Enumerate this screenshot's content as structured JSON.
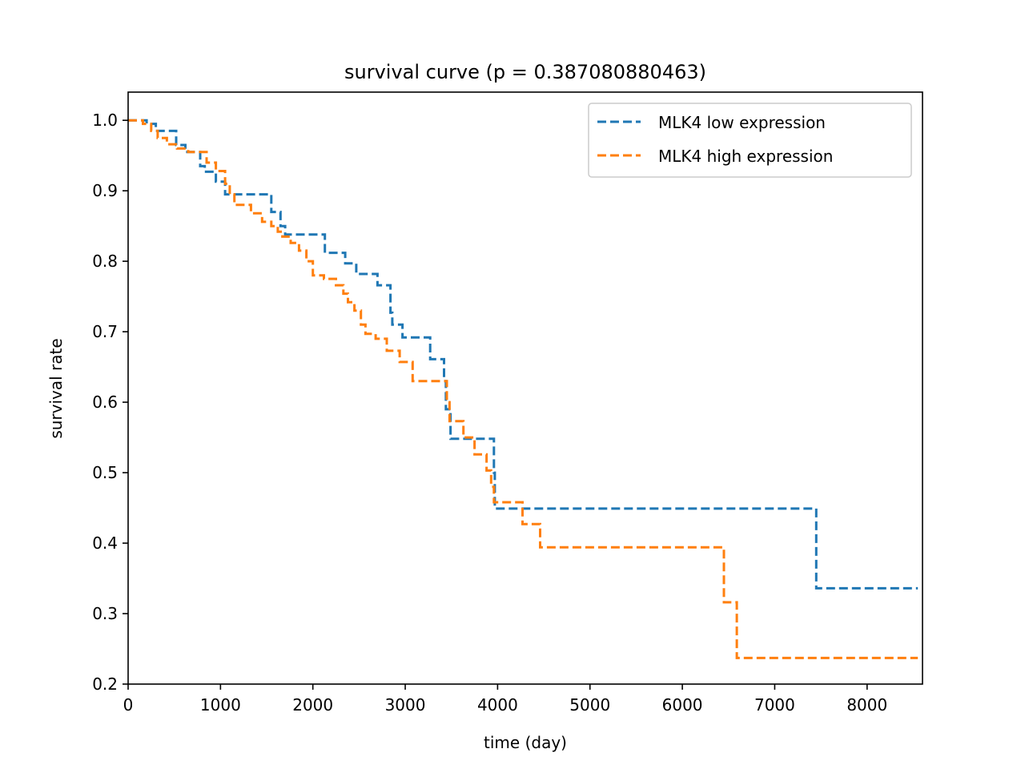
{
  "chart_data": {
    "type": "line",
    "step": "post",
    "title": "survival curve (p = 0.387080880463)",
    "xlabel": "time (day)",
    "ylabel": "survival rate",
    "xlim": [
      0,
      8600
    ],
    "ylim": [
      0.2,
      1.04
    ],
    "xticks": [
      0,
      1000,
      2000,
      3000,
      4000,
      5000,
      6000,
      7000,
      8000
    ],
    "yticks": [
      0.2,
      0.3,
      0.4,
      0.5,
      0.6,
      0.7,
      0.8,
      0.9,
      1.0
    ],
    "xtick_labels": [
      "0",
      "1000",
      "2000",
      "3000",
      "4000",
      "5000",
      "6000",
      "7000",
      "8000"
    ],
    "ytick_labels": [
      "0.2",
      "0.3",
      "0.4",
      "0.5",
      "0.6",
      "0.7",
      "0.8",
      "0.9",
      "1.0"
    ],
    "grid": false,
    "legend_position": "top-right",
    "line_style": "dashed",
    "series": [
      {
        "name": "MLK4 low expression",
        "color": "#1f77b4",
        "points": [
          [
            0,
            1.0
          ],
          [
            200,
            0.995
          ],
          [
            300,
            0.985
          ],
          [
            520,
            0.965
          ],
          [
            620,
            0.955
          ],
          [
            780,
            0.935
          ],
          [
            830,
            0.927
          ],
          [
            950,
            0.913
          ],
          [
            1050,
            0.895
          ],
          [
            1400,
            0.895
          ],
          [
            1550,
            0.87
          ],
          [
            1650,
            0.85
          ],
          [
            1700,
            0.838
          ],
          [
            2130,
            0.812
          ],
          [
            2350,
            0.797
          ],
          [
            2470,
            0.782
          ],
          [
            2700,
            0.766
          ],
          [
            2840,
            0.727
          ],
          [
            2860,
            0.71
          ],
          [
            2970,
            0.692
          ],
          [
            3270,
            0.661
          ],
          [
            3420,
            0.63
          ],
          [
            3440,
            0.59
          ],
          [
            3490,
            0.548
          ],
          [
            3960,
            0.5
          ],
          [
            3970,
            0.449
          ],
          [
            7450,
            0.336
          ],
          [
            8550,
            0.336
          ]
        ]
      },
      {
        "name": "MLK4 high expression",
        "color": "#ff7f0e",
        "points": [
          [
            0,
            1.0
          ],
          [
            160,
            0.995
          ],
          [
            250,
            0.985
          ],
          [
            320,
            0.975
          ],
          [
            420,
            0.966
          ],
          [
            530,
            0.96
          ],
          [
            650,
            0.955
          ],
          [
            850,
            0.94
          ],
          [
            950,
            0.928
          ],
          [
            1050,
            0.91
          ],
          [
            1100,
            0.895
          ],
          [
            1150,
            0.88
          ],
          [
            1270,
            0.88
          ],
          [
            1330,
            0.868
          ],
          [
            1450,
            0.856
          ],
          [
            1550,
            0.85
          ],
          [
            1620,
            0.842
          ],
          [
            1670,
            0.835
          ],
          [
            1760,
            0.826
          ],
          [
            1850,
            0.815
          ],
          [
            1930,
            0.8
          ],
          [
            2000,
            0.78
          ],
          [
            2120,
            0.775
          ],
          [
            2250,
            0.766
          ],
          [
            2330,
            0.754
          ],
          [
            2380,
            0.742
          ],
          [
            2450,
            0.73
          ],
          [
            2520,
            0.71
          ],
          [
            2570,
            0.697
          ],
          [
            2680,
            0.69
          ],
          [
            2800,
            0.673
          ],
          [
            2940,
            0.657
          ],
          [
            3080,
            0.63
          ],
          [
            3450,
            0.6
          ],
          [
            3480,
            0.573
          ],
          [
            3630,
            0.55
          ],
          [
            3750,
            0.526
          ],
          [
            3880,
            0.503
          ],
          [
            3930,
            0.48
          ],
          [
            3960,
            0.458
          ],
          [
            4270,
            0.427
          ],
          [
            4460,
            0.394
          ],
          [
            6450,
            0.316
          ],
          [
            6590,
            0.237
          ],
          [
            8550,
            0.237
          ]
        ]
      }
    ]
  }
}
